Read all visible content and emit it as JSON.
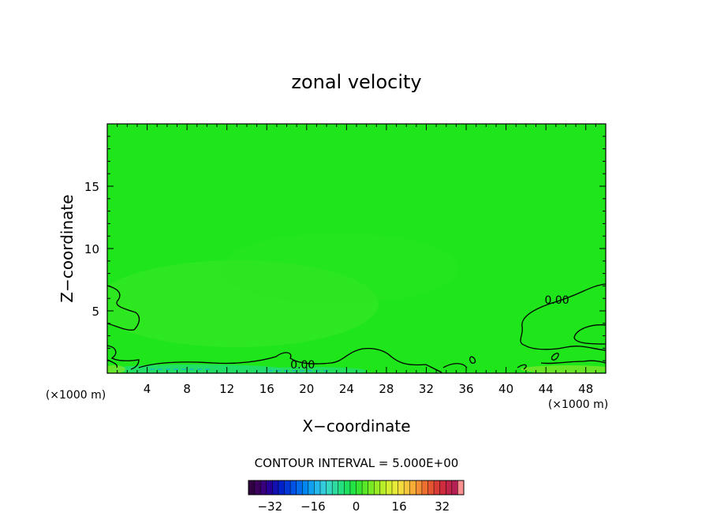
{
  "chart_data": {
    "type": "heatmap",
    "title": "zonal velocity",
    "xlabel": "X−coordinate",
    "ylabel": "Z−coordinate",
    "x_unit_left": "(×1000 m)",
    "x_unit_right": "(×1000 m)",
    "xlim": [
      0,
      50
    ],
    "ylim": [
      0,
      20
    ],
    "x_ticks": [
      4,
      8,
      12,
      16,
      20,
      24,
      28,
      32,
      36,
      40,
      44,
      48
    ],
    "x_tick_labels": [
      "4",
      "8",
      "12",
      "16",
      "20",
      "24",
      "28",
      "32",
      "36",
      "40",
      "44",
      "48"
    ],
    "y_ticks": [
      5,
      10,
      15
    ],
    "y_tick_labels": [
      "5",
      "10",
      "15"
    ],
    "field_color": "#1ee61a",
    "contour_labels": [
      {
        "text": "0.00",
        "x": 19.6,
        "z": 0.7
      },
      {
        "text": "0.00",
        "x": 45.1,
        "z": 5.9
      }
    ],
    "contour_interval_text": "CONTOUR INTERVAL = 5.000E+00",
    "colorbar": {
      "min": -40,
      "max": 40,
      "ticks": [
        -32,
        -16,
        0,
        16,
        32
      ],
      "tick_labels": [
        "−32",
        "−16",
        "0",
        "16",
        "32"
      ],
      "colors": [
        "#300040",
        "#3a005c",
        "#38007a",
        "#260096",
        "#1410b0",
        "#0020c8",
        "#0038d8",
        "#0052e4",
        "#006cec",
        "#0086f0",
        "#10a0f0",
        "#24b8ec",
        "#34ccdc",
        "#36d8c2",
        "#2edca0",
        "#24de80",
        "#1ee060",
        "#22e244",
        "#38e430",
        "#58e828",
        "#78ea24",
        "#98ec24",
        "#b8ee28",
        "#d4ee30",
        "#e8ea38",
        "#f4dc3c",
        "#f8c63c",
        "#f8ac38",
        "#f48e34",
        "#ee7030",
        "#e45430",
        "#d83c34",
        "#cc2c3c",
        "#c02448",
        "#b42054",
        "#ff9090"
      ]
    }
  }
}
